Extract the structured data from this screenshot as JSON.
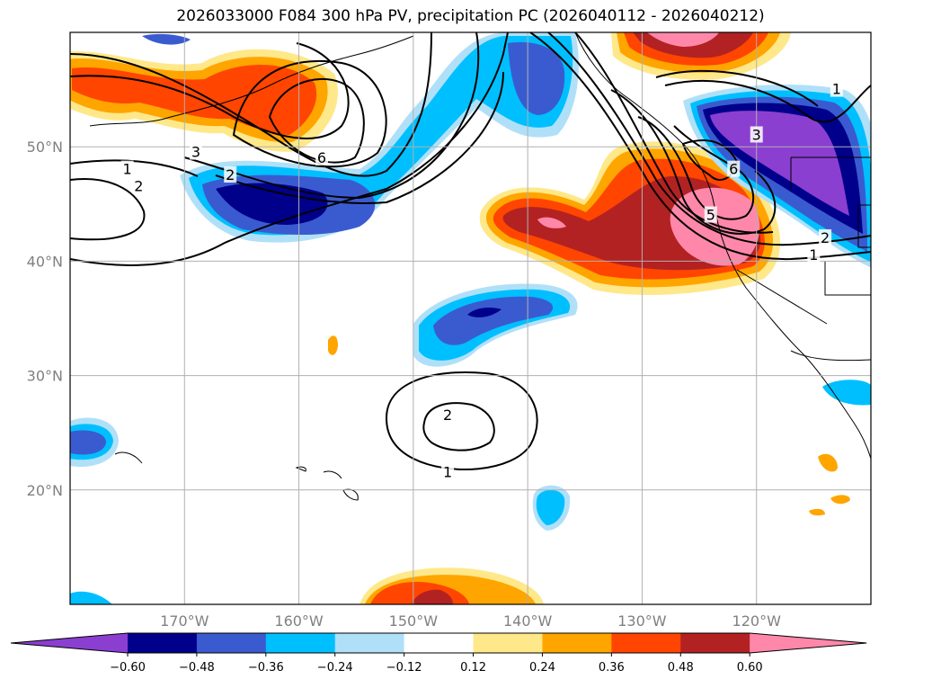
{
  "chart_data": {
    "type": "heatmap",
    "title": "2026033000 F084 300 hPa PV, precipitation PC (2026040112 - 2026040212)",
    "map": {
      "lon_range": [
        -180,
        -110
      ],
      "lat_range": [
        10,
        60
      ],
      "lon_ticks": [
        -170,
        -160,
        -150,
        -140,
        -130,
        -120
      ],
      "lon_tick_labels": [
        "170°W",
        "160°W",
        "150°W",
        "140°W",
        "130°W",
        "120°W"
      ],
      "lat_ticks": [
        20,
        30,
        40,
        50
      ],
      "lat_tick_labels": [
        "20°N",
        "30°N",
        "40°N",
        "50°N"
      ],
      "grid": true
    },
    "colorbar": {
      "levels": [
        -0.6,
        -0.48,
        -0.36,
        -0.24,
        -0.12,
        0.12,
        0.24,
        0.36,
        0.48,
        0.6
      ],
      "level_labels": [
        "−0.60",
        "−0.48",
        "−0.36",
        "−0.24",
        "−0.12",
        "0.12",
        "0.24",
        "0.36",
        "0.48",
        "0.60"
      ],
      "colors": [
        "#8a3fd1",
        "#00008b",
        "#3a5bd0",
        "#00bfff",
        "#b0e0f8",
        "#ffffff",
        "#ffe88a",
        "#ffa500",
        "#ff4500",
        "#b22222",
        "#ff88aa"
      ],
      "extend": "both"
    },
    "pv_contours": [
      {
        "label": "1",
        "lon": -175,
        "lat": 48
      },
      {
        "label": "2",
        "lon": -174,
        "lat": 46.5
      },
      {
        "label": "2",
        "lon": -166,
        "lat": 47.5
      },
      {
        "label": "3",
        "lon": -169,
        "lat": 49.5
      },
      {
        "label": "6",
        "lon": -158,
        "lat": 49
      },
      {
        "label": "2",
        "lon": -147,
        "lat": 26.5
      },
      {
        "label": "1",
        "lon": -147,
        "lat": 21.5
      },
      {
        "label": "3",
        "lon": -120,
        "lat": 51
      },
      {
        "label": "6",
        "lon": -122,
        "lat": 48
      },
      {
        "label": "5",
        "lon": -124,
        "lat": 44
      },
      {
        "label": "2",
        "lon": -114,
        "lat": 42
      },
      {
        "label": "1",
        "lon": -115,
        "lat": 40.5
      },
      {
        "label": "1",
        "lon": -113,
        "lat": 55
      }
    ],
    "precip_pc_regions": [
      {
        "level": 0.36,
        "lon": -166,
        "lat": 54
      },
      {
        "level": -0.48,
        "lon": -163,
        "lat": 45
      },
      {
        "level": -0.24,
        "lon": -150,
        "lat": 50
      },
      {
        "level": 0.48,
        "lon": -126,
        "lat": 44
      },
      {
        "level": 0.6,
        "lon": -125,
        "lat": 43.5
      },
      {
        "level": -0.6,
        "lon": -117,
        "lat": 49
      },
      {
        "level": -0.36,
        "lon": -145,
        "lat": 35
      },
      {
        "level": 0.36,
        "lon": -140,
        "lat": 11
      },
      {
        "level": -0.24,
        "lon": -138,
        "lat": 18
      },
      {
        "level": -0.36,
        "lon": -178,
        "lat": 24
      },
      {
        "level": 0.48,
        "lon": -126,
        "lat": 59
      }
    ]
  }
}
